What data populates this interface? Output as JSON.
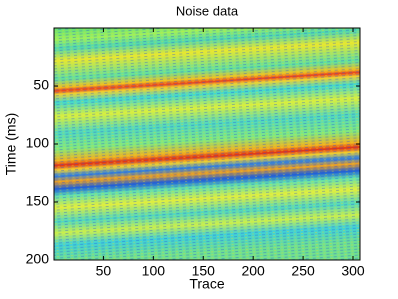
{
  "chart_data": {
    "type": "image",
    "title": "Noise data",
    "x_label": "Trace",
    "y_label": "Time (ms)",
    "xlim": [
      0.5,
      307
    ],
    "xticks": [
      50,
      100,
      150,
      200,
      250,
      300
    ],
    "ylim": [
      200,
      0
    ],
    "yticks": [
      50,
      100,
      150,
      200
    ]
  }
}
